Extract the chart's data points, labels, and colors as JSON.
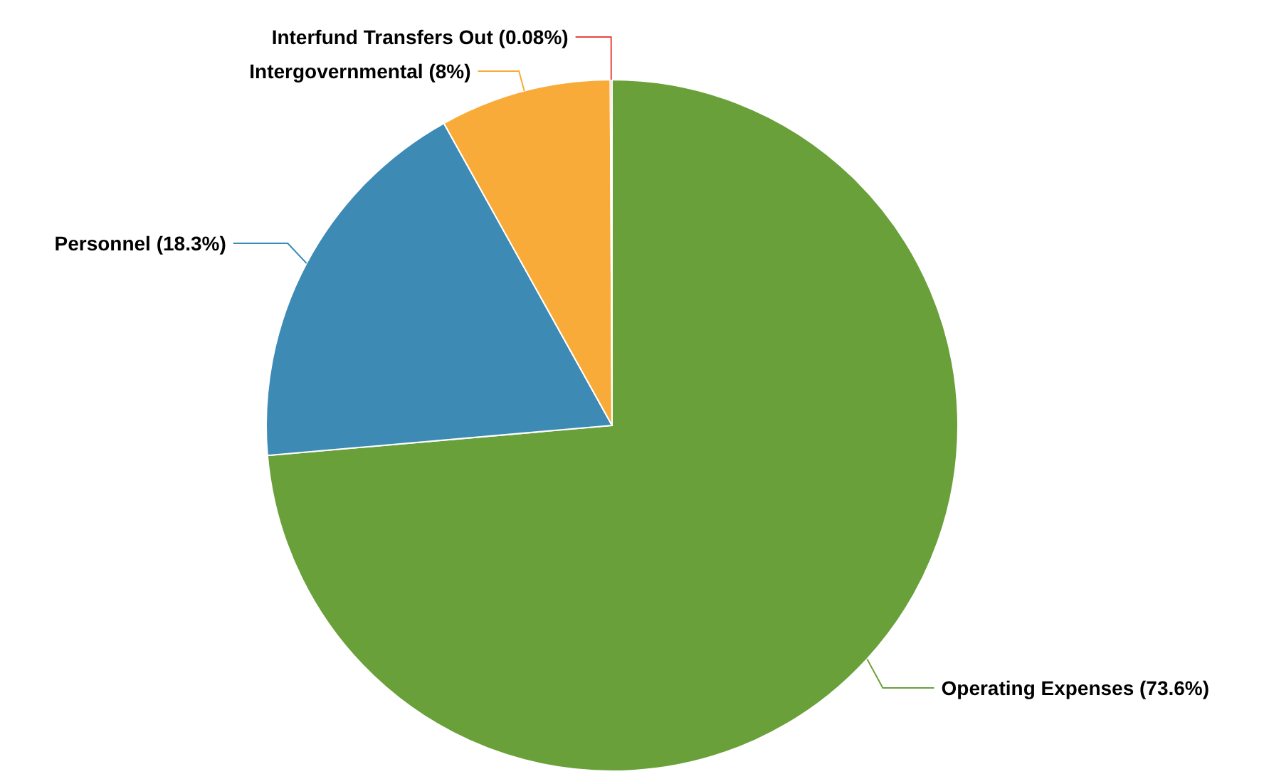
{
  "chart_data": {
    "type": "pie",
    "categories": [
      "Operating Expenses",
      "Personnel",
      "Intergovernmental",
      "Interfund Transfers Out"
    ],
    "values": [
      73.6,
      18.3,
      8,
      0.08
    ],
    "value_labels": [
      "(73.6%)",
      "(18.3%)",
      "(8%)",
      "(0.08%)"
    ],
    "colors": [
      "#69a03a",
      "#3d8ab5",
      "#f8ab38",
      "#e8473b"
    ]
  }
}
